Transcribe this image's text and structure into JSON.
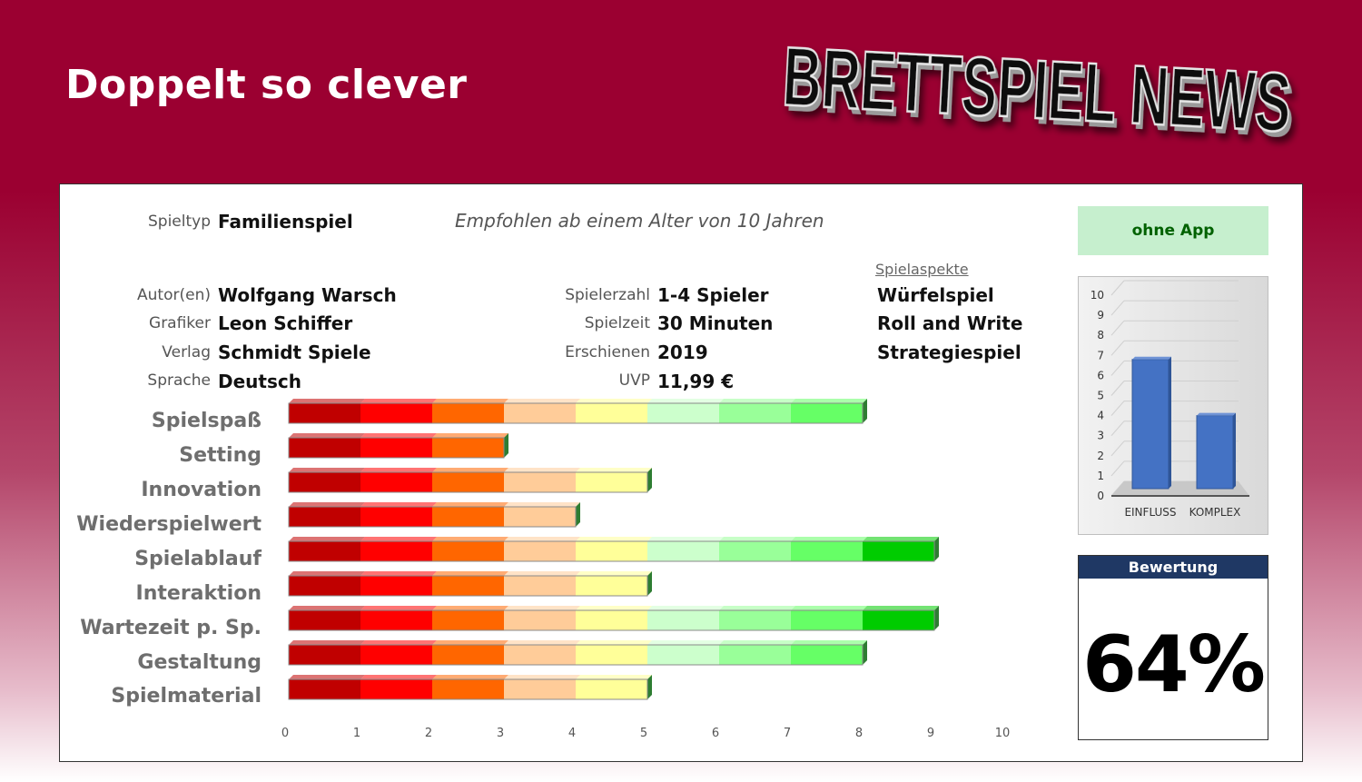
{
  "header": {
    "title": "Doppelt so clever",
    "logo_text": "BRETTSPIEL NEWS"
  },
  "info": {
    "spieltyp_label": "Spieltyp",
    "spieltyp": "Familienspiel",
    "recommendation": "Empfohlen ab einem Alter von 10 Jahren",
    "autor_label": "Autor(en)",
    "autor": "Wolfgang Warsch",
    "grafiker_label": "Grafiker",
    "grafiker": "Leon Schiffer",
    "verlag_label": "Verlag",
    "verlag": "Schmidt Spiele",
    "sprache_label": "Sprache",
    "sprache": "Deutsch",
    "spielerzahl_label": "Spielerzahl",
    "spielerzahl": "1-4 Spieler",
    "spielzeit_label": "Spielzeit",
    "spielzeit": "30 Minuten",
    "erschienen_label": "Erschienen",
    "erschienen": "2019",
    "uvp_label": "UVP",
    "uvp": "11,99 €"
  },
  "aspects": {
    "title": "Spielaspekte",
    "items": [
      "Würfelspiel",
      "Roll and Write",
      "Strategiespiel"
    ]
  },
  "app_badge": "ohne App",
  "rating": {
    "label": "Bewertung",
    "value": "64%"
  },
  "colors": {
    "segments": [
      "#c00000",
      "#ff0000",
      "#ff6600",
      "#ffcc99",
      "#ffff99",
      "#ccffcc",
      "#99ff99",
      "#66ff66",
      "#00cc00",
      "#008000"
    ],
    "mini_bar": "#4472c4",
    "app_bg": "#c6efce",
    "app_text": "#006100",
    "rating_header": "#1f3864"
  },
  "chart_data": [
    {
      "type": "bar",
      "orientation": "horizontal",
      "categories": [
        "Spielspaß",
        "Setting",
        "Innovation",
        "Wiederspielwert",
        "Spielablauf",
        "Interaktion",
        "Wartezeit p. Sp.",
        "Gestaltung",
        "Spielmaterial"
      ],
      "values": [
        8,
        3,
        5,
        4,
        9,
        5,
        9,
        8,
        5
      ],
      "xlim": [
        0,
        10
      ],
      "xticks": [
        0,
        1,
        2,
        3,
        4,
        5,
        6,
        7,
        8,
        9,
        10
      ],
      "grid": false
    },
    {
      "type": "bar",
      "categories": [
        "EINFLUSS",
        "KOMPLEX"
      ],
      "values": [
        6.8,
        4.0
      ],
      "ylim": [
        0,
        10
      ],
      "yticks": [
        0,
        1,
        2,
        3,
        4,
        5,
        6,
        7,
        8,
        9,
        10
      ],
      "grid": true
    }
  ]
}
